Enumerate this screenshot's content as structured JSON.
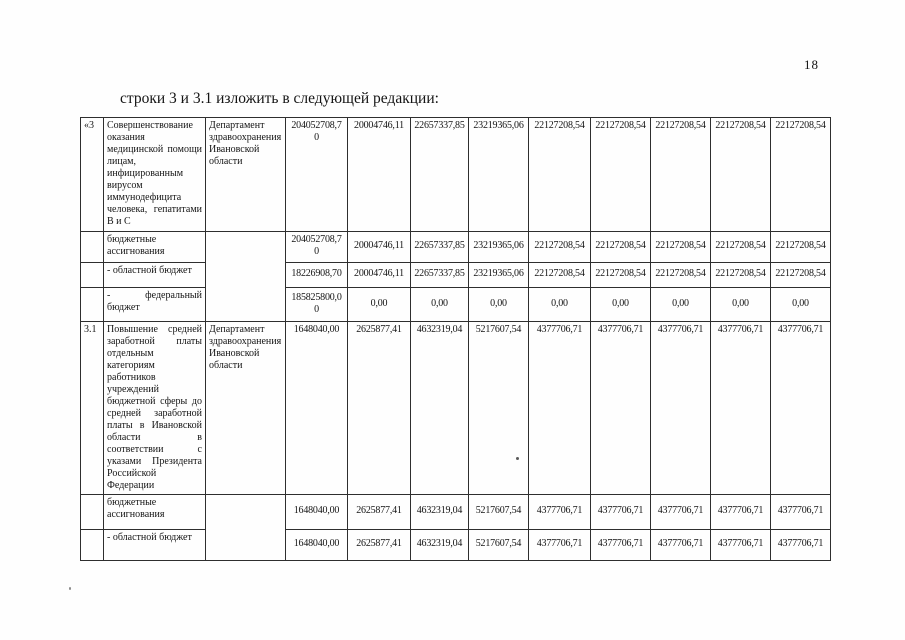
{
  "page": {
    "number": "18",
    "heading": "строки 3 и 3.1 изложить в следующей редакции:"
  },
  "table": {
    "rows": [
      {
        "num": "«3",
        "name": "Совершенствование оказания медицинской помощи лицам, инфицированным вирусом иммунодефицита человека, гепатитами В и С",
        "department": "Департамент здравоохранения Ивановской области",
        "values": [
          "204052708,70",
          "20004746,11",
          "22657337,85",
          "23219365,06",
          "22127208,54",
          "22127208,54",
          "22127208,54",
          "22127208,54",
          "22127208,54"
        ]
      },
      {
        "num": "",
        "name": "бюджетные ассигнования",
        "values": [
          "204052708,70",
          "20004746,11",
          "22657337,85",
          "23219365,06",
          "22127208,54",
          "22127208,54",
          "22127208,54",
          "22127208,54",
          "22127208,54"
        ]
      },
      {
        "num": "",
        "name": "- областной бюджет",
        "values": [
          "18226908,70",
          "20004746,11",
          "22657337,85",
          "23219365,06",
          "22127208,54",
          "22127208,54",
          "22127208,54",
          "22127208,54",
          "22127208,54"
        ]
      },
      {
        "num": "",
        "name": "- федеральный бюджет",
        "values": [
          "185825800,00",
          "0,00",
          "0,00",
          "0,00",
          "0,00",
          "0,00",
          "0,00",
          "0,00",
          "0,00"
        ]
      },
      {
        "num": "3.1",
        "name": "Повышение средней заработной платы отдельным категориям работников учреждений бюджетной сферы до средней заработной платы в Ивановской области в соответствии с указами Президента Российской Федерации",
        "department": "Департамент здравоохранения Ивановской области",
        "values": [
          "1648040,00",
          "2625877,41",
          "4632319,04",
          "5217607,54",
          "4377706,71",
          "4377706,71",
          "4377706,71",
          "4377706,71",
          "4377706,71"
        ]
      },
      {
        "num": "",
        "name": "бюджетные ассигнования",
        "values": [
          "1648040,00",
          "2625877,41",
          "4632319,04",
          "5217607,54",
          "4377706,71",
          "4377706,71",
          "4377706,71",
          "4377706,71",
          "4377706,71"
        ]
      },
      {
        "num": "",
        "name": "- областной бюджет",
        "values": [
          "1648040,00",
          "2625877,41",
          "4632319,04",
          "5217607,54",
          "4377706,71",
          "4377706,71",
          "4377706,71",
          "4377706,71",
          "4377706,71"
        ]
      }
    ]
  }
}
